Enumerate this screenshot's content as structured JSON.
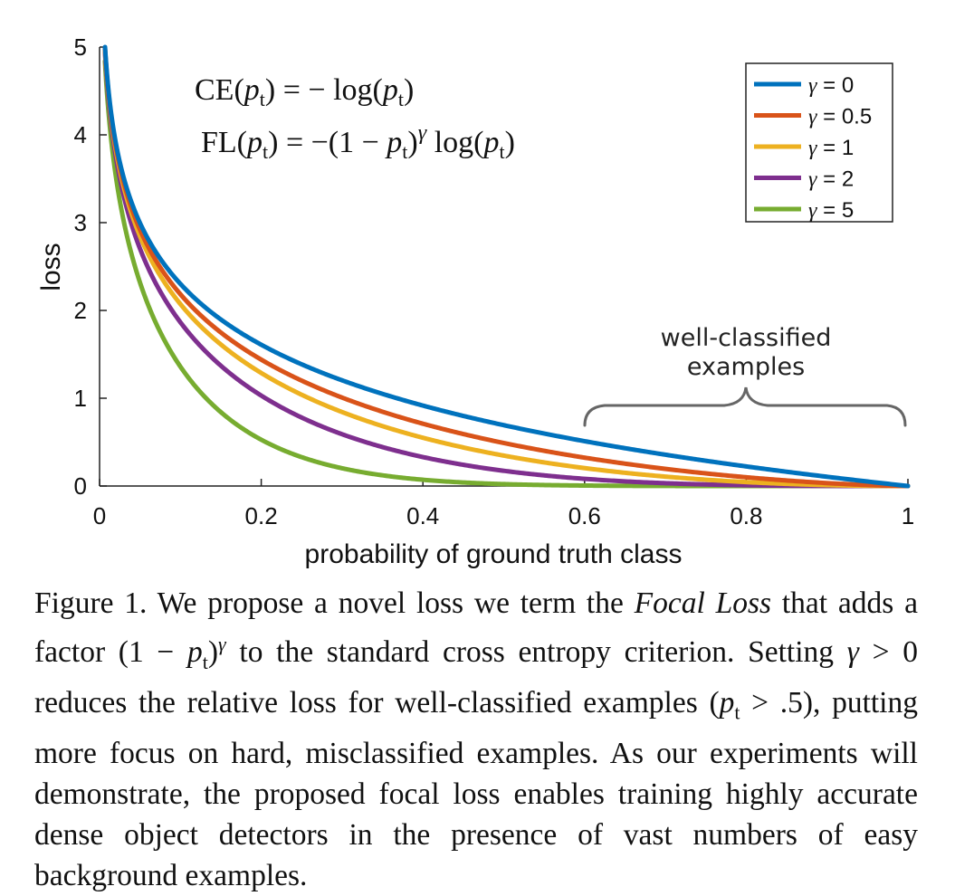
{
  "chart_data": {
    "type": "line",
    "title": "",
    "xlabel": "probability of ground truth class",
    "ylabel": "loss",
    "xlim": [
      0,
      1
    ],
    "ylim": [
      0,
      5
    ],
    "xticks": [
      0,
      0.2,
      0.4,
      0.6,
      0.8,
      1
    ],
    "xtick_labels": [
      "0",
      "0.2",
      "0.4",
      "0.6",
      "0.8",
      "1"
    ],
    "yticks": [
      0,
      1,
      2,
      3,
      4,
      5
    ],
    "ytick_labels": [
      "0",
      "1",
      "2",
      "3",
      "4",
      "5"
    ],
    "grid": false,
    "legend_position": "top-right",
    "x": [
      0.0067,
      0.01,
      0.02,
      0.03,
      0.05,
      0.07,
      0.1,
      0.15,
      0.2,
      0.25,
      0.3,
      0.4,
      0.5,
      0.6,
      0.7,
      0.8,
      0.9,
      1.0
    ],
    "series": [
      {
        "name": "γ = 0",
        "gamma": 0,
        "color": "#0072BD",
        "values": [
          5.0,
          4.61,
          3.91,
          3.51,
          3.0,
          2.66,
          2.3,
          1.9,
          1.61,
          1.39,
          1.2,
          0.92,
          0.69,
          0.51,
          0.36,
          0.22,
          0.11,
          0.0
        ]
      },
      {
        "name": "γ = 0.5",
        "gamma": 0.5,
        "color": "#D95319",
        "values": [
          4.98,
          4.58,
          3.87,
          3.45,
          2.92,
          2.56,
          2.18,
          1.75,
          1.44,
          1.2,
          1.0,
          0.71,
          0.49,
          0.32,
          0.2,
          0.1,
          0.03,
          0.0
        ]
      },
      {
        "name": "γ = 1",
        "gamma": 1,
        "color": "#EDB120",
        "values": [
          4.97,
          4.56,
          3.83,
          3.4,
          2.85,
          2.47,
          2.07,
          1.61,
          1.29,
          1.04,
          0.84,
          0.55,
          0.35,
          0.2,
          0.11,
          0.04,
          0.01,
          0.0
        ]
      },
      {
        "name": "γ = 2",
        "gamma": 2,
        "color": "#7E2F8E",
        "values": [
          4.93,
          4.52,
          3.76,
          3.3,
          2.71,
          2.3,
          1.86,
          1.37,
          1.03,
          0.78,
          0.59,
          0.33,
          0.17,
          0.08,
          0.03,
          0.01,
          0.0,
          0.0
        ]
      },
      {
        "name": "γ = 5",
        "gamma": 5,
        "color": "#77AC30",
        "values": [
          4.84,
          4.38,
          3.54,
          3.04,
          2.32,
          1.83,
          1.36,
          0.84,
          0.53,
          0.33,
          0.2,
          0.07,
          0.02,
          0.01,
          0.0,
          0.0,
          0.0,
          0.0
        ]
      }
    ],
    "annotations": [
      {
        "text_lines": [
          "well-classified",
          "examples"
        ],
        "x_range": [
          0.6,
          1.0
        ]
      }
    ]
  },
  "formulas": {
    "ce": {
      "lhs": "CE(",
      "p": "p",
      "sub": "t",
      "rhs": ") = − log(",
      "p2": "p",
      "sub2": "t",
      "end": ")"
    },
    "fl": {
      "lhs": "FL(",
      "p": "p",
      "sub": "t",
      "mid": ") = −(1 − ",
      "p2": "p",
      "sub2": "t",
      "pow_open": ")",
      "gamma": "γ",
      "log": " log(",
      "p3": "p",
      "sub3": "t",
      "end": ")"
    }
  },
  "caption": {
    "label": "Figure 1.",
    "t1": " We propose a novel loss we term the ",
    "focal": "Focal Loss",
    "t2": " that adds a factor (1 − ",
    "p": "p",
    "sub": "t",
    "t3": ")",
    "gamma_sup": "γ",
    "t4": " to the standard cross entropy criterion. Setting ",
    "gamma": "γ",
    "t5": " > 0 reduces the relative loss for well-classified examples (",
    "p2": "p",
    "sub2": "t",
    "t6": " > .5), putting more focus on hard, misclassified examples. As our experiments will demonstrate, the proposed focal loss enables training highly accurate dense object detectors in the presence of vast numbers of easy background examples."
  }
}
